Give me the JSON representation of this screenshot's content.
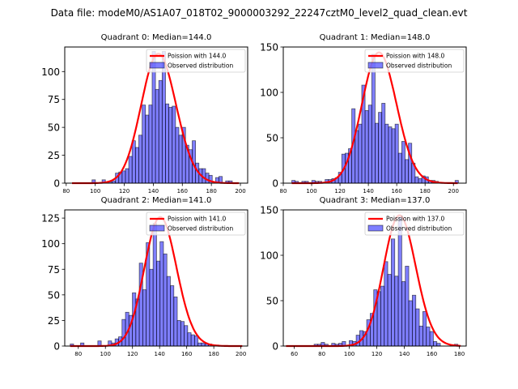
{
  "suptitle": "Data file: modeM0/AS1A07_018T02_9000003292_22247cztM0_level2_quad_clean.evt",
  "colors": {
    "bar_fill": "#0000ff",
    "bar_alpha": 0.5,
    "bar_edge": "#000000",
    "line": "#ff0000"
  },
  "chart_data": [
    {
      "type": "bar",
      "title": "Quadrant 0: Median=144.0",
      "legend": [
        "Poission with 144.0",
        "Observed distribution"
      ],
      "legend_position": "top-right",
      "xlim": [
        79,
        205
      ],
      "ylim": [
        0,
        122
      ],
      "xticks": [
        80,
        100,
        120,
        140,
        160,
        180,
        200
      ],
      "yticks": [
        0,
        25,
        50,
        75,
        100
      ],
      "bin_start": 84,
      "bin_width": 2.3,
      "counts": [
        0,
        0,
        0,
        0,
        0,
        0,
        3,
        0,
        0,
        3,
        0,
        1,
        2,
        9,
        10,
        11,
        13,
        24,
        38,
        32,
        43,
        70,
        61,
        70,
        118,
        84,
        92,
        118,
        71,
        68,
        69,
        50,
        43,
        50,
        34,
        30,
        38,
        18,
        13,
        13,
        9,
        7,
        0,
        5,
        6,
        0,
        2,
        2,
        0,
        0
      ],
      "poisson_mean": 144.0,
      "poisson_peak": 116
    },
    {
      "type": "bar",
      "title": "Quadrant 1: Median=148.0",
      "legend": [
        "Poission with 148.0",
        "Observed distribution"
      ],
      "legend_position": "top-right",
      "xlim": [
        80,
        209
      ],
      "ylim": [
        0,
        150
      ],
      "xticks": [
        80,
        100,
        120,
        140,
        160,
        180,
        200
      ],
      "yticks": [
        0,
        50,
        100,
        150
      ],
      "bin_start": 86,
      "bin_width": 2.35,
      "counts": [
        3,
        2,
        0,
        2,
        2,
        0,
        3,
        2,
        2,
        0,
        4,
        4,
        5,
        6,
        12,
        32,
        33,
        38,
        82,
        58,
        65,
        108,
        80,
        86,
        142,
        66,
        78,
        88,
        65,
        62,
        60,
        65,
        33,
        46,
        26,
        44,
        22,
        7,
        5,
        8,
        7,
        3,
        3,
        2,
        0,
        0,
        0,
        0,
        0,
        3
      ],
      "poisson_mean": 148.0,
      "poisson_peak": 144
    },
    {
      "type": "bar",
      "title": "Quadrant 2: Median=141.0",
      "legend": [
        "Poission with 141.0",
        "Observed distribution"
      ],
      "legend_position": "top-right",
      "xlim": [
        70,
        205
      ],
      "ylim": [
        0,
        133
      ],
      "xticks": [
        80,
        100,
        120,
        140,
        160,
        180,
        200
      ],
      "yticks": [
        0,
        25,
        50,
        75,
        100,
        125
      ],
      "bin_start": 74,
      "bin_width": 2.55,
      "counts": [
        2,
        0,
        0,
        3,
        0,
        0,
        0,
        0,
        5,
        0,
        0,
        5,
        3,
        7,
        9,
        26,
        33,
        30,
        52,
        46,
        81,
        55,
        101,
        75,
        120,
        83,
        102,
        90,
        68,
        59,
        48,
        25,
        24,
        20,
        13,
        11,
        10,
        3,
        3,
        2,
        2,
        1,
        1,
        0,
        0,
        0,
        0,
        0,
        0,
        0
      ],
      "poisson_mean": 141.0,
      "poisson_peak": 126
    },
    {
      "type": "bar",
      "title": "Quadrant 3: Median=137.0",
      "legend": [
        "Poission with 137.0",
        "Observed distribution"
      ],
      "legend_position": "top-right",
      "xlim": [
        52,
        185
      ],
      "ylim": [
        0,
        150
      ],
      "xticks": [
        60,
        80,
        100,
        120,
        140,
        160,
        180
      ],
      "yticks": [
        0,
        50,
        100,
        150
      ],
      "bin_start": 54,
      "bin_width": 2.55,
      "counts": [
        0,
        0,
        0,
        0,
        0,
        0,
        0,
        0,
        2,
        2,
        4,
        2,
        0,
        3,
        2,
        3,
        5,
        0,
        6,
        5,
        12,
        17,
        16,
        29,
        36,
        62,
        60,
        66,
        93,
        79,
        118,
        77,
        142,
        71,
        88,
        50,
        56,
        41,
        22,
        38,
        21,
        16,
        5,
        3,
        0,
        0,
        0,
        0,
        2,
        0
      ],
      "poisson_mean": 137.0,
      "poisson_peak": 144
    }
  ]
}
